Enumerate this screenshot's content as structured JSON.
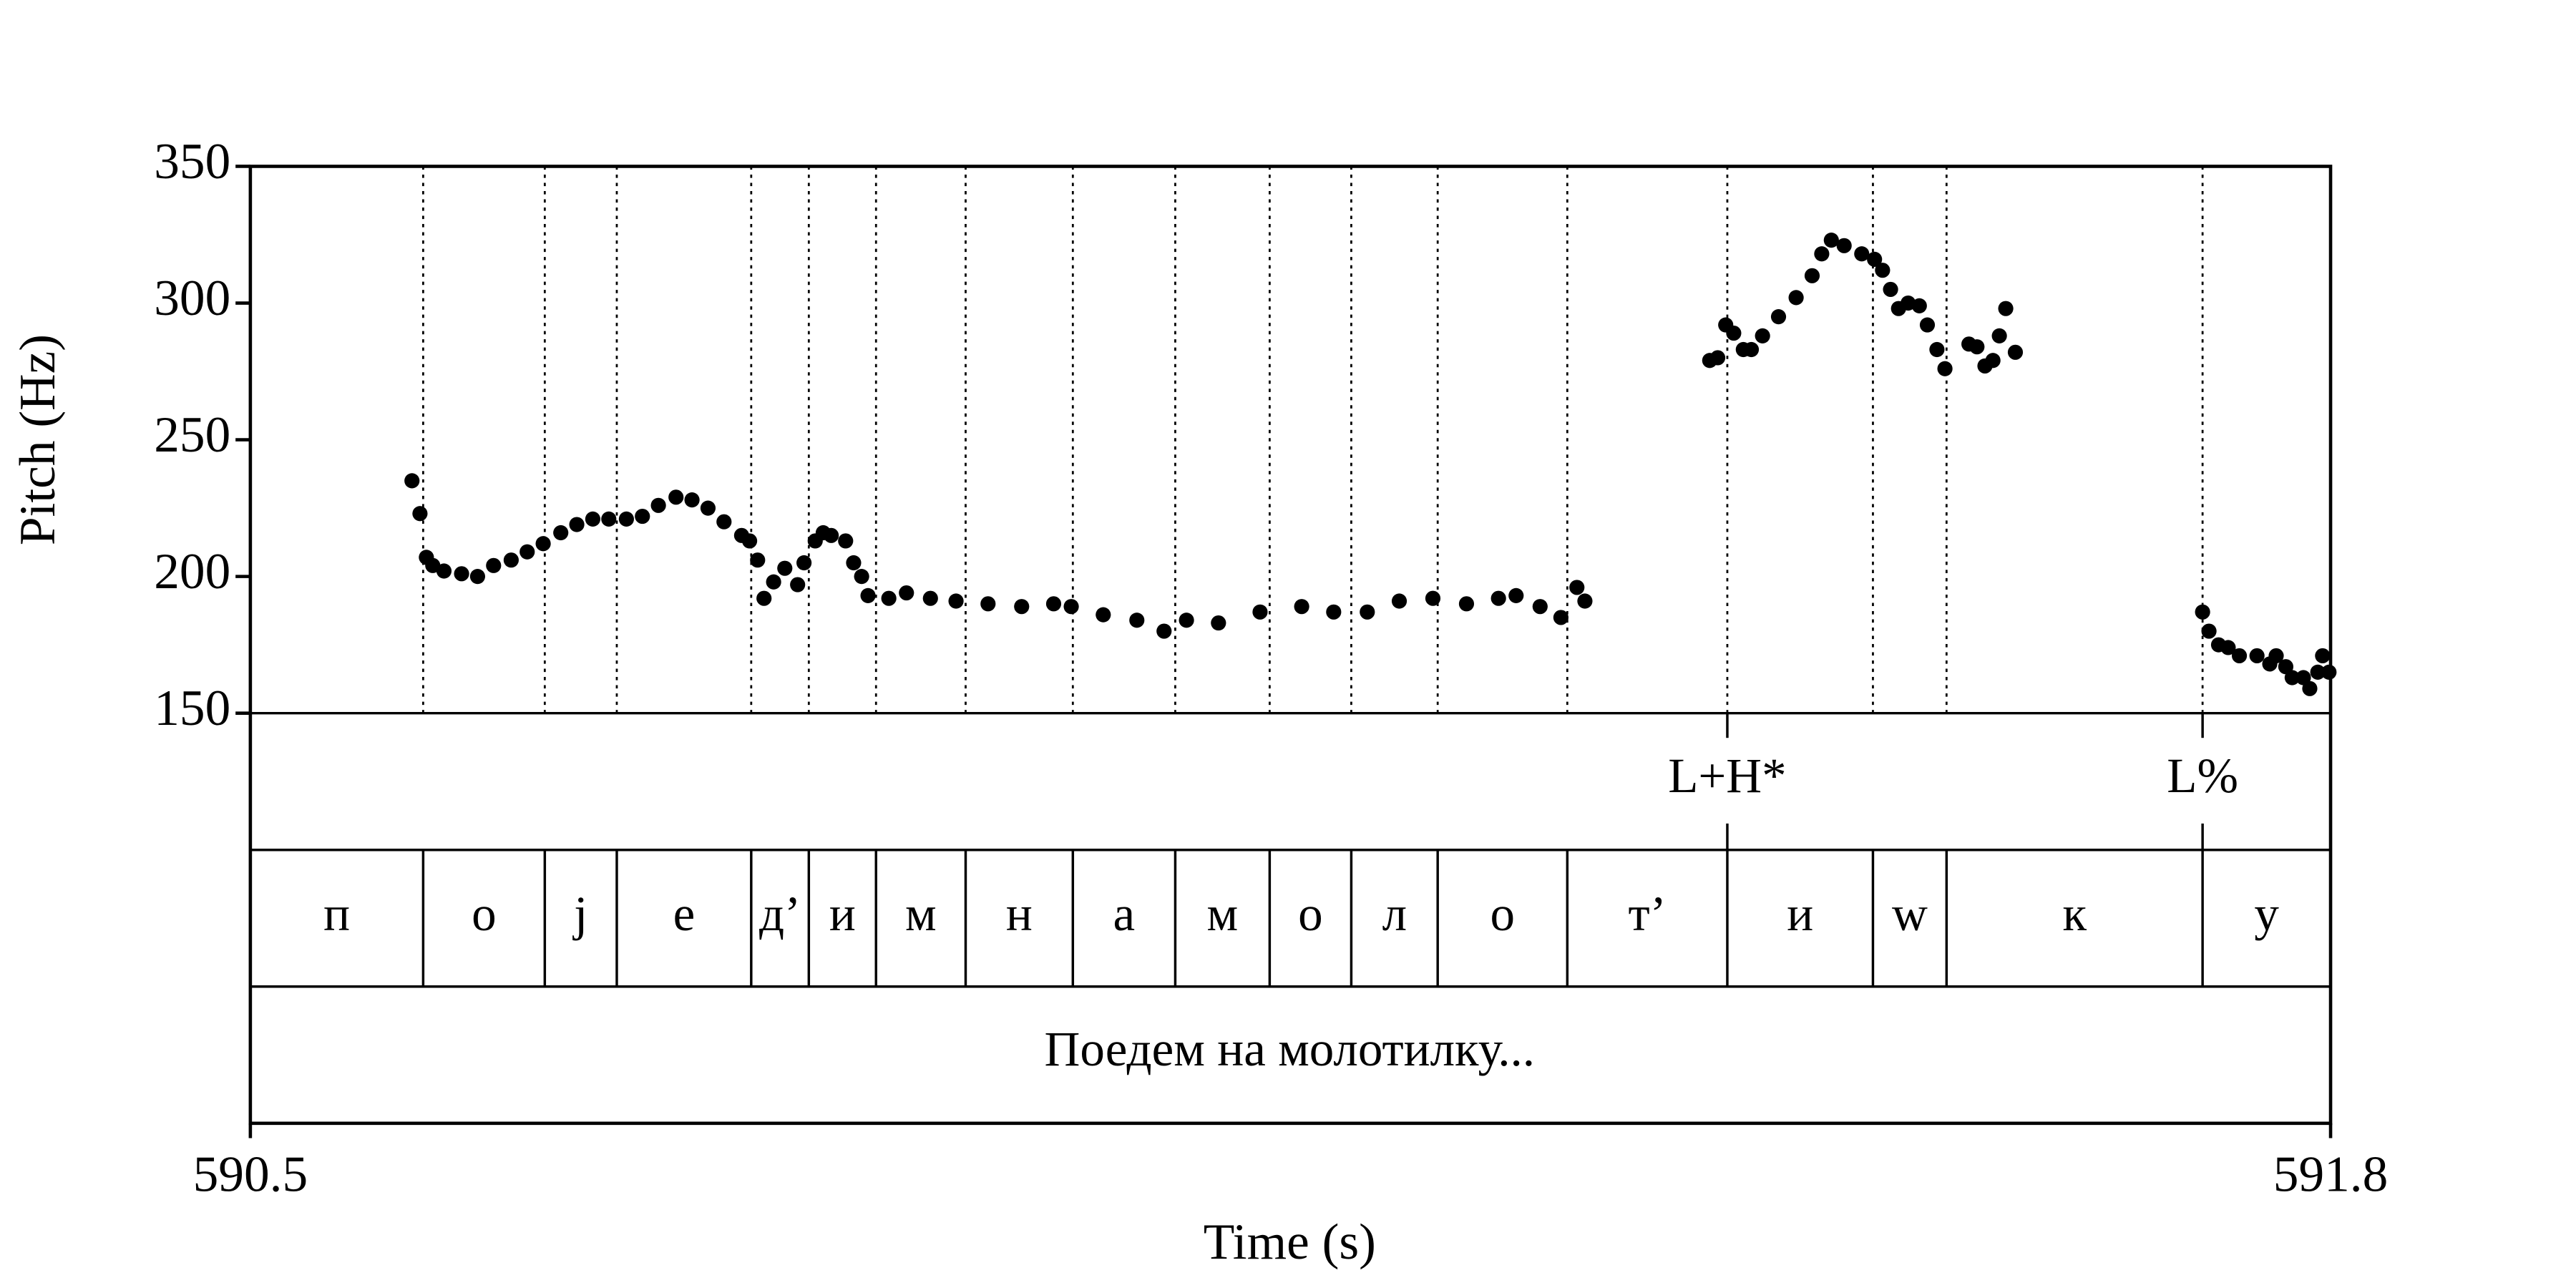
{
  "chart_data": {
    "type": "scatter",
    "xlabel": "Time (s)",
    "ylabel": "Pitch (Hz)",
    "xlim": [
      590.5,
      591.8
    ],
    "xticks": [
      590.5,
      591.8
    ],
    "ylim": [
      150,
      350
    ],
    "yticks": [
      150,
      200,
      250,
      300,
      350
    ],
    "color": "#000000",
    "x": [
      590.601,
      590.606,
      590.61,
      590.614,
      590.621,
      590.632,
      590.642,
      590.652,
      590.663,
      590.673,
      590.683,
      590.694,
      590.704,
      590.714,
      590.724,
      590.735,
      590.745,
      590.755,
      590.766,
      590.776,
      590.786,
      590.796,
      590.807,
      590.812,
      590.817,
      590.821,
      590.827,
      590.834,
      590.842,
      590.846,
      590.853,
      590.858,
      590.863,
      590.872,
      590.877,
      590.882,
      590.886,
      590.899,
      590.91,
      590.925,
      590.941,
      590.961,
      590.982,
      591.002,
      591.013,
      591.033,
      591.054,
      591.071,
      591.085,
      591.105,
      591.131,
      591.157,
      591.177,
      591.198,
      591.218,
      591.239,
      591.26,
      591.28,
      591.291,
      591.306,
      591.319,
      591.329,
      591.334,
      591.412,
      591.417,
      591.422,
      591.427,
      591.433,
      591.438,
      591.445,
      591.455,
      591.466,
      591.476,
      591.482,
      591.488,
      591.496,
      591.507,
      591.515,
      591.52,
      591.525,
      591.53,
      591.536,
      591.543,
      591.548,
      591.554,
      591.559,
      591.574,
      591.579,
      591.584,
      591.589,
      591.593,
      591.597,
      591.603,
      591.72,
      591.724,
      591.73,
      591.736,
      591.743,
      591.754,
      591.762,
      591.766,
      591.772,
      591.776,
      591.783,
      591.787,
      591.792,
      591.795,
      591.799
    ],
    "values": [
      235,
      223,
      207,
      204,
      202,
      201,
      200,
      204,
      206,
      209,
      212,
      216,
      219,
      221,
      221,
      221,
      222,
      226,
      229,
      228,
      225,
      220,
      215,
      213,
      206,
      192,
      198,
      203,
      197,
      205,
      213,
      216,
      215,
      213,
      205,
      200,
      193,
      192,
      194,
      192,
      191,
      190,
      189,
      190,
      189,
      186,
      184,
      180,
      184,
      183,
      187,
      189,
      187,
      187,
      191,
      192,
      190,
      192,
      193,
      189,
      185,
      196,
      191,
      279,
      280,
      292,
      289,
      283,
      283,
      288,
      295,
      302,
      310,
      318,
      323,
      321,
      318,
      316,
      312,
      305,
      298,
      300,
      299,
      292,
      283,
      276,
      285,
      284,
      277,
      279,
      288,
      298,
      282,
      187,
      180,
      175,
      174,
      171,
      171,
      168,
      171,
      167,
      163,
      163,
      159,
      165,
      171,
      165
    ],
    "tones": [
      {
        "time": 591.423,
        "label": "L+H*"
      },
      {
        "time": 591.72,
        "label": "L%"
      }
    ],
    "segment_boundaries": [
      590.608,
      590.684,
      590.729,
      590.813,
      590.849,
      590.891,
      590.947,
      591.014,
      591.078,
      591.137,
      591.188,
      591.242,
      591.323,
      591.423,
      591.514,
      591.56,
      591.72
    ],
    "segments": [
      "п",
      "о",
      "j",
      "е",
      "д’",
      "и",
      "м",
      "н",
      "а",
      "м",
      "о",
      "л",
      "о",
      "т’",
      "и",
      "w",
      "к",
      "у"
    ],
    "phrase": "Поедем на молотилку..."
  }
}
